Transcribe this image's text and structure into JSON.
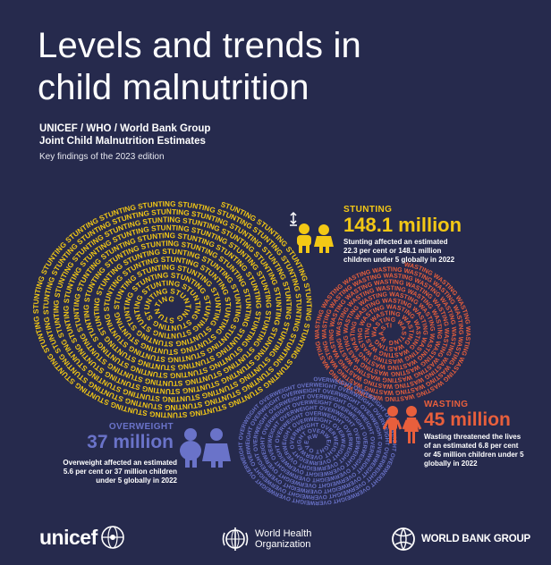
{
  "header": {
    "title_line1": "Levels and trends in",
    "title_line2": "child malnutrition",
    "subtitle_line1": "UNICEF / WHO / World Bank Group",
    "subtitle_line2": "Joint Child Malnutrition Estimates",
    "edition": "Key findings of the 2023 edition"
  },
  "spirals": {
    "stunting_word": "STUNTING",
    "wasting_word": "WASTING",
    "overweight_word": "OVERWEIGHT"
  },
  "stats": {
    "stunting": {
      "label": "STUNTING",
      "value": "148.1 million",
      "desc_line1": "Stunting affected an estimated",
      "desc_line2": "22.3 per cent or 148.1 million",
      "desc_line3": "children under 5 globally in 2022"
    },
    "wasting": {
      "label": "WASTING",
      "value": "45 million",
      "desc_line1": "Wasting threatened the lives",
      "desc_line2": "of an estimated 6.8 per cent",
      "desc_line3": "or 45 million children under 5",
      "desc_line4": "globally in 2022"
    },
    "overweight": {
      "label": "OVERWEIGHT",
      "value": "37 million",
      "desc_line1": "Overweight affected an estimated",
      "desc_line2": "5.6 per cent or 37 million children",
      "desc_line3": "under 5 globally in 2022"
    }
  },
  "logos": {
    "unicef": "unicef",
    "who_line1": "World Health",
    "who_line2": "Organization",
    "worldbank": "WORLD BANK GROUP"
  },
  "colors": {
    "background": "#262a4d",
    "stunting": "#f3c815",
    "wasting": "#e85f3c",
    "overweight": "#6a73c9"
  },
  "icons": {
    "stunting": "children-height-icon",
    "wasting": "children-wasting-icon",
    "overweight": "children-overweight-icon",
    "unicef": "unicef-globe-icon",
    "who": "who-emblem-icon",
    "worldbank": "worldbank-globe-icon"
  }
}
